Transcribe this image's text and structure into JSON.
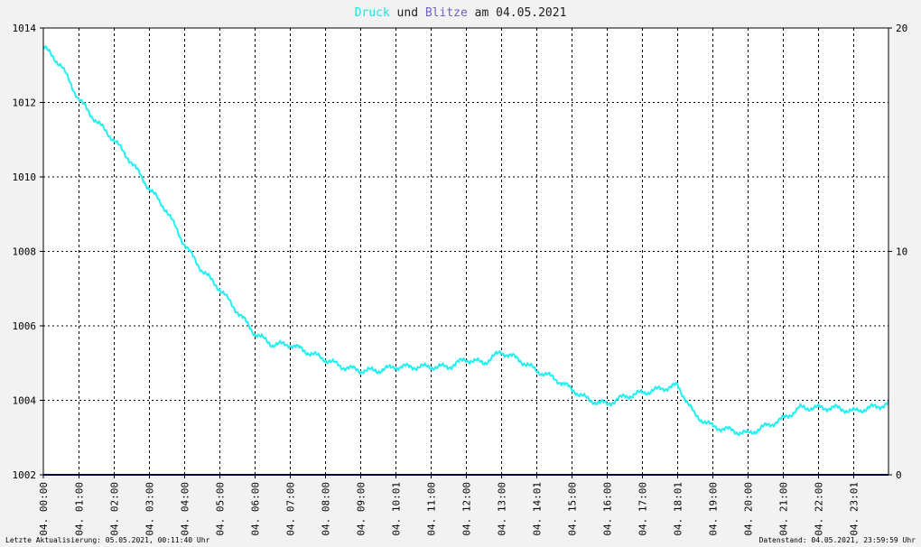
{
  "title": {
    "part1": "Druck",
    "part2": " und ",
    "part3": "Blitze",
    "part4": " am 04.05.2021",
    "color1": "#22e0e0",
    "color3": "#7060c0",
    "color_other": "#202020"
  },
  "footer": {
    "left": "Letzte Aktualisierung: 05.05.2021, 00:11:40 Uhr",
    "right": "Datenstand: 04.05.2021, 23:59:59 Uhr"
  },
  "chart_data": {
    "type": "line",
    "title": "Druck und Blitze am 04.05.2021",
    "x_tick_labels": [
      "04. 00:00",
      "04. 01:00",
      "04. 02:00",
      "04. 03:00",
      "04. 04:00",
      "04. 05:00",
      "04. 06:00",
      "04. 07:00",
      "04. 08:00",
      "04. 09:00",
      "04. 10:01",
      "04. 11:00",
      "04. 12:00",
      "04. 13:00",
      "04. 14:01",
      "04. 15:00",
      "04. 16:00",
      "04. 17:00",
      "04. 18:01",
      "04. 19:00",
      "04. 20:00",
      "04. 21:00",
      "04. 22:00",
      "04. 23:01"
    ],
    "xlim_hours": [
      0,
      24
    ],
    "y_left": {
      "ticks": [
        1002,
        1004,
        1006,
        1008,
        1010,
        1012,
        1014
      ],
      "lim": [
        1002,
        1014
      ]
    },
    "y_right": {
      "ticks": [
        0,
        10,
        20
      ],
      "lim": [
        0,
        20
      ]
    },
    "grid": true,
    "series": [
      {
        "name": "Druck",
        "axis": "left",
        "color": "#22f0f0",
        "x_hours": [
          0,
          0.5,
          1,
          1.5,
          2,
          2.5,
          3,
          3.5,
          4,
          4.5,
          5,
          5.5,
          6,
          6.5,
          7,
          7.5,
          8,
          8.5,
          9,
          9.5,
          10,
          10.5,
          11,
          11.5,
          12,
          12.5,
          13,
          13.5,
          14,
          14.5,
          15,
          15.5,
          16,
          16.5,
          17,
          17.5,
          18,
          18.2,
          18.5,
          19,
          19.5,
          20,
          20.5,
          21,
          21.5,
          22,
          22.5,
          23,
          23.5,
          24
        ],
        "values": [
          1013.5,
          1013,
          1012.1,
          1011.5,
          1011,
          1010.4,
          1009.7,
          1009.1,
          1008.2,
          1007.5,
          1007,
          1006.4,
          1005.8,
          1005.5,
          1005.5,
          1005.3,
          1005.1,
          1004.9,
          1004.8,
          1004.8,
          1004.9,
          1004.9,
          1004.9,
          1004.9,
          1005.1,
          1005,
          1005.3,
          1005.1,
          1004.8,
          1004.6,
          1004.3,
          1004,
          1003.9,
          1004.1,
          1004.2,
          1004.3,
          1004.4,
          1004.1,
          1003.6,
          1003.3,
          1003.2,
          1003.1,
          1003.3,
          1003.5,
          1003.8,
          1003.8,
          1003.8,
          1003.7,
          1003.8,
          1003.9
        ]
      },
      {
        "name": "Blitze",
        "axis": "right",
        "color": "#000080",
        "x_hours": [
          0,
          24
        ],
        "values": [
          0,
          0
        ]
      }
    ]
  }
}
